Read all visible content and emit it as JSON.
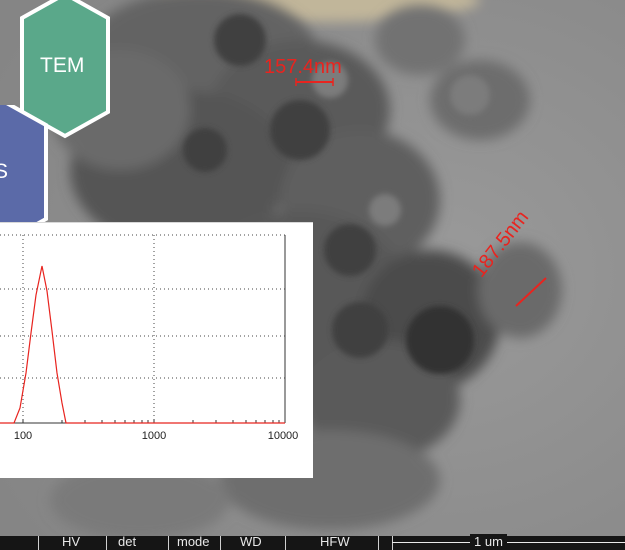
{
  "badges": {
    "tem": "TEM",
    "dls": "S"
  },
  "annotations": {
    "size_1": "157.4nm",
    "size_2": "187.5nm"
  },
  "inset": {
    "x_ticks": [
      "100",
      "1000",
      "10000"
    ],
    "curve_color": "#e8241f"
  },
  "statusbar": {
    "hv": "HV",
    "det": "det",
    "mode": "mode",
    "wd": "WD",
    "hfw": "HFW",
    "scalebar": "1 um"
  },
  "colors": {
    "tem_hex": "#5aa88a",
    "dls_hex": "#5b6aa8",
    "annotation": "#e8241f"
  }
}
